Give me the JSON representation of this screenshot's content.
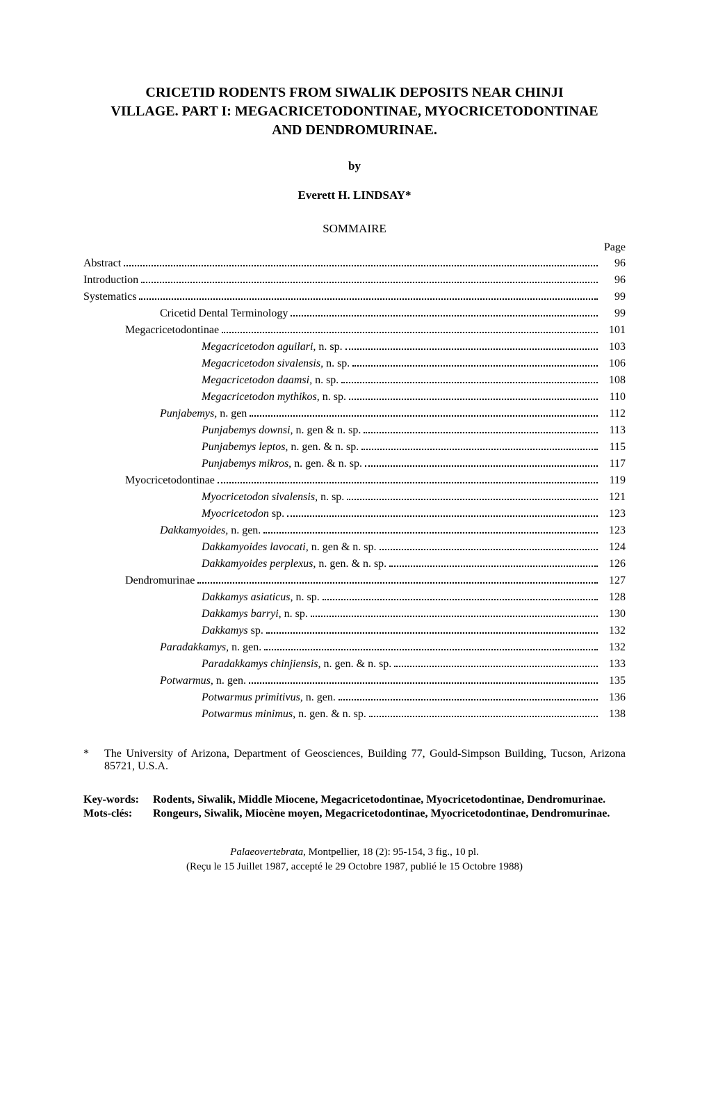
{
  "title_line1": "CRICETID RODENTS FROM SIWALIK DEPOSITS NEAR CHINJI",
  "title_line2": "VILLAGE. PART I: MEGACRICETODONTINAE, MYOCRICETODONTINAE",
  "title_line3": "AND DENDROMURINAE.",
  "by": "by",
  "author": "Everett H. LINDSAY*",
  "sommaire": "SOMMAIRE",
  "page_label": "Page",
  "toc": [
    {
      "label": "Abstract",
      "page": "96",
      "indent": 0,
      "italic": false
    },
    {
      "label": "Introduction",
      "page": "96",
      "indent": 0,
      "italic": false
    },
    {
      "label": "Systematics",
      "page": "99",
      "indent": 0,
      "italic": false
    },
    {
      "label": "Cricetid Dental Terminology",
      "page": "99",
      "indent": 1,
      "italic": false
    },
    {
      "label": "Megacricetodontinae",
      "page": "101",
      "indent": 2,
      "italic": false
    },
    {
      "label_italic": "Megacricetodon aguilari,",
      "label_rest": " n. sp.",
      "page": "103",
      "indent": 4
    },
    {
      "label_italic": "Megacricetodon sivalensis,",
      "label_rest": " n. sp.",
      "page": "106",
      "indent": 4
    },
    {
      "label_italic": "Megacricetodon daamsi,",
      "label_rest": " n. sp.",
      "page": "108",
      "indent": 4
    },
    {
      "label_italic": "Megacricetodon mythikos,",
      "label_rest": " n. sp.",
      "page": "110",
      "indent": 4
    },
    {
      "label_italic": "Punjabemys,",
      "label_rest": " n. gen",
      "page": "112",
      "indent": 3
    },
    {
      "label_italic": "Punjabemys downsi,",
      "label_rest": " n. gen & n. sp.",
      "page": "113",
      "indent": 4
    },
    {
      "label_italic": "Punjabemys leptos,",
      "label_rest": " n. gen. & n. sp.",
      "page": "115",
      "indent": 4
    },
    {
      "label_italic": "Punjabemys mikros,",
      "label_rest": " n. gen. & n. sp.",
      "page": "117",
      "indent": 4
    },
    {
      "label": "Myocricetodontinae",
      "page": "119",
      "indent": 2,
      "italic": false
    },
    {
      "label_italic": "Myocricetodon sivalensis,",
      "label_rest": " n. sp.",
      "page": "121",
      "indent": 4
    },
    {
      "label_italic": "Myocricetodon",
      "label_rest": " sp.",
      "page": "123",
      "indent": 4
    },
    {
      "label_italic": "Dakkamyoides,",
      "label_rest": " n. gen.",
      "page": "123",
      "indent": 3
    },
    {
      "label_italic": "Dakkamyoides lavocati,",
      "label_rest": " n. gen & n. sp.",
      "page": "124",
      "indent": 4
    },
    {
      "label_italic": "Dakkamyoides perplexus,",
      "label_rest": " n. gen. & n. sp.",
      "page": "126",
      "indent": 4
    },
    {
      "label": "Dendromurinae",
      "page": "127",
      "indent": 2,
      "italic": false
    },
    {
      "label_italic": "Dakkamys asiaticus,",
      "label_rest": " n. sp.",
      "page": "128",
      "indent": 4
    },
    {
      "label_italic": "Dakkamys barryi,",
      "label_rest": " n. sp.",
      "page": "130",
      "indent": 4
    },
    {
      "label_italic": "Dakkamys",
      "label_rest": " sp.",
      "page": "132",
      "indent": 4
    },
    {
      "label_italic": "Paradakkamys,",
      "label_rest": " n. gen.",
      "page": "132",
      "indent": 3
    },
    {
      "label_italic": "Paradakkamys chinjiensis,",
      "label_rest": " n. gen. & n. sp.",
      "page": "133",
      "indent": 4
    },
    {
      "label_italic": "Potwarmus,",
      "label_rest": " n. gen.",
      "page": "135",
      "indent": 3
    },
    {
      "label_italic": "Potwarmus primitivus,",
      "label_rest": " n. gen.",
      "page": "136",
      "indent": 4
    },
    {
      "label_italic": "Potwarmus minimus,",
      "label_rest": " n. gen. & n. sp.",
      "page": "138",
      "indent": 4
    }
  ],
  "footnote_marker": "*",
  "footnote_text": "The University of Arizona, Department of Geosciences, Building 77, Gould-Simpson Building, Tucson, Arizona 85721, U.S.A.",
  "keywords_label": "Key-words:",
  "keywords_text": "Rodents, Siwalik, Middle Miocene, Megacricetodontinae, Myocricetodontinae, Dendromurinae.",
  "motscles_label": "Mots-clés:",
  "motscles_text": "Rongeurs, Siwalik, Miocène moyen, Megacricetodontinae, Myocricetodontinae, Dendromurinae.",
  "citation_journal": "Palaeovertebrata,",
  "citation_rest": " Montpellier, 18 (2): 95-154, 3 fig., 10 pl.",
  "citation_line2": "(Reçu le 15 Juillet 1987, accepté le 29 Octobre 1987, publié le 15 Octobre 1988)"
}
